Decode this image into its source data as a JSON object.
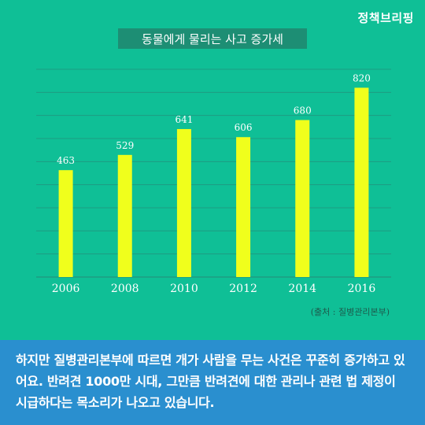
{
  "brand": "정책브리핑",
  "chart_data": {
    "type": "bar",
    "title": "동물에게 물리는 사고 증가세",
    "categories": [
      "2006",
      "2008",
      "2010",
      "2012",
      "2014",
      "2016"
    ],
    "values": [
      463,
      529,
      641,
      606,
      680,
      820
    ],
    "xlabel": "",
    "ylabel": "",
    "ylim": [
      0,
      900
    ],
    "grid": true,
    "legend": "none",
    "bar_color": "#f0ff1c"
  },
  "source": "(출처 : 질병관리본부)",
  "footer_text": "하지만 질병관리본부에 따르면 개가 사람을 무는 사건은 꾸준히 증가하고 있어요. 반려견 1000만 시대, 그만큼 반려견에 대한 관리나 관련 법 제정이 시급하다는 목소리가 나오고 있습니다.",
  "colors": {
    "background": "#0fbf96",
    "title_box": "#1d8e74",
    "gridline": "#1e9c82",
    "footer_background": "#2a8fcf"
  }
}
